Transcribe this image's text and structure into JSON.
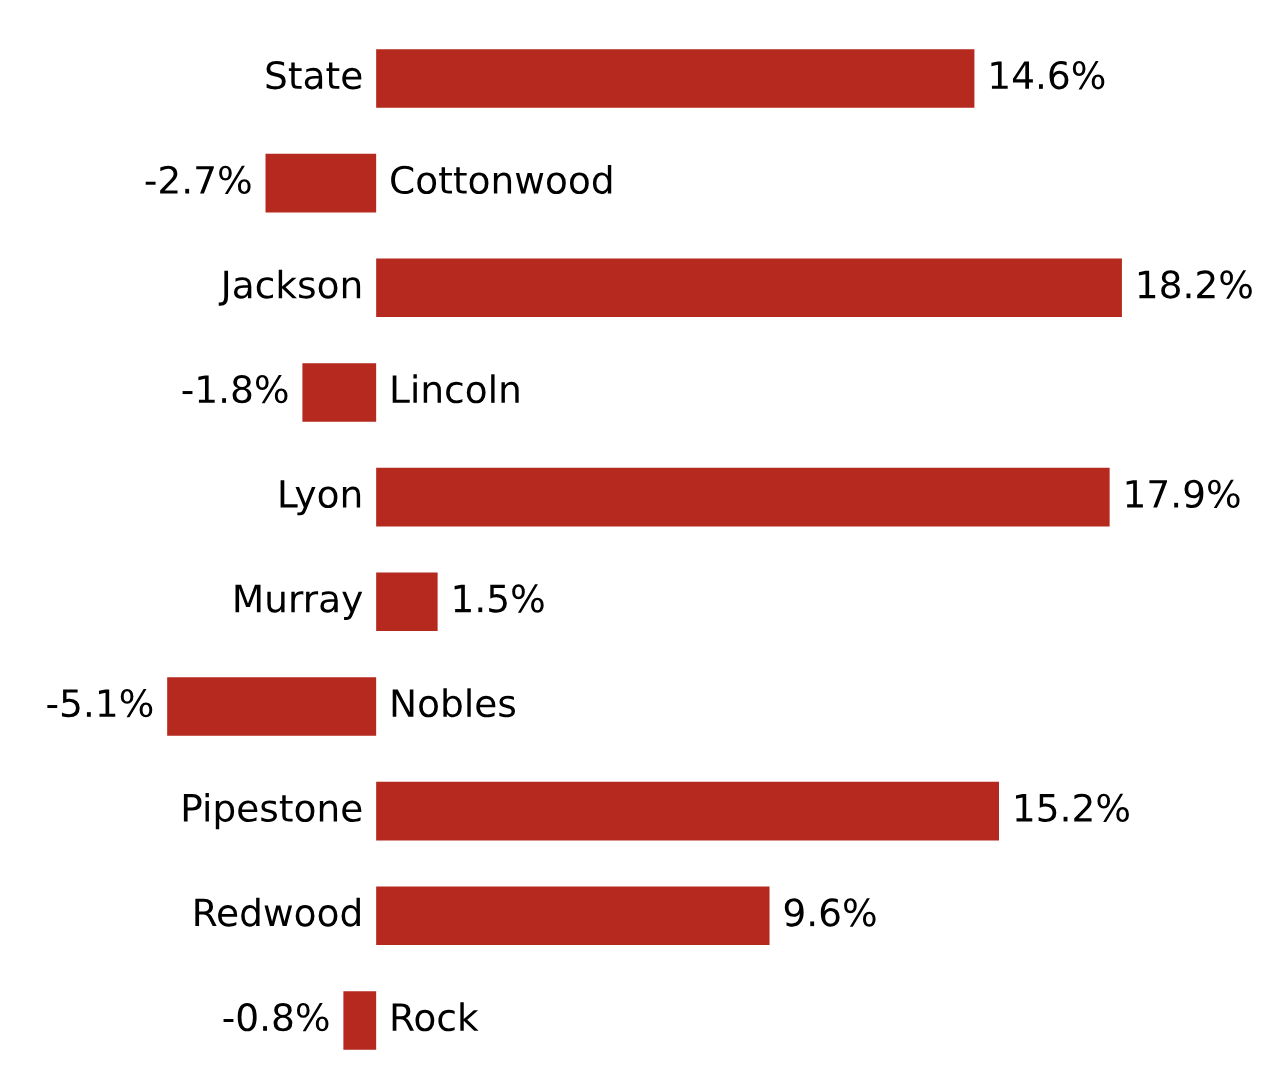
{
  "chart_data": {
    "type": "bar",
    "orientation": "horizontal",
    "categories": [
      "State",
      "Cottonwood",
      "Jackson",
      "Lincoln",
      "Lyon",
      "Murray",
      "Nobles",
      "Pipestone",
      "Redwood",
      "Rock"
    ],
    "values": [
      14.6,
      -2.7,
      18.2,
      -1.8,
      17.9,
      1.5,
      -5.1,
      15.2,
      9.6,
      -0.8
    ],
    "value_labels": [
      "14.6%",
      "-2.7%",
      "18.2%",
      "-1.8%",
      "17.9%",
      "1.5%",
      "-5.1%",
      "15.2%",
      "9.6%",
      "-0.8%"
    ],
    "color": "#b5291e"
  }
}
